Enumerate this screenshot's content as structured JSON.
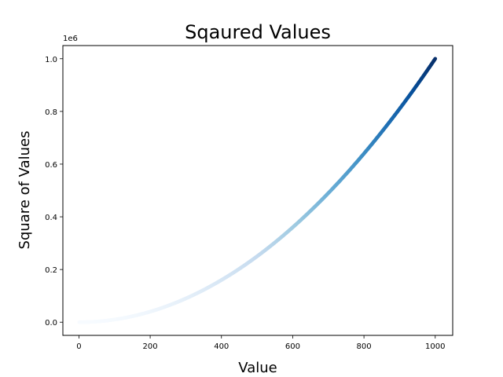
{
  "chart_data": {
    "type": "scatter",
    "title": "Sqaured Values",
    "xlabel": "Value",
    "ylabel": "Square of Values",
    "y_offset_label": "1e6",
    "xlim": [
      -45,
      1049
    ],
    "ylim": [
      -50000,
      1050000
    ],
    "x_ticks": [
      0,
      200,
      400,
      600,
      800,
      1000
    ],
    "x_tick_labels": [
      "0",
      "200",
      "400",
      "600",
      "800",
      "1000"
    ],
    "y_ticks": [
      0,
      200000,
      400000,
      600000,
      800000,
      1000000
    ],
    "y_tick_labels": [
      "0.0",
      "0.2",
      "0.4",
      "0.6",
      "0.8",
      "1.0"
    ],
    "series": [
      {
        "x_start": 1,
        "x_end": 1000,
        "x_step": 1,
        "y_function": "x^2",
        "colormap": "Blues"
      }
    ],
    "colormap_stops": [
      "#f7fbff",
      "#deebf7",
      "#c6dbef",
      "#9ecae1",
      "#6baed6",
      "#4292c6",
      "#2171b5",
      "#08519c",
      "#08306b"
    ],
    "grid": false,
    "legend": "none"
  }
}
